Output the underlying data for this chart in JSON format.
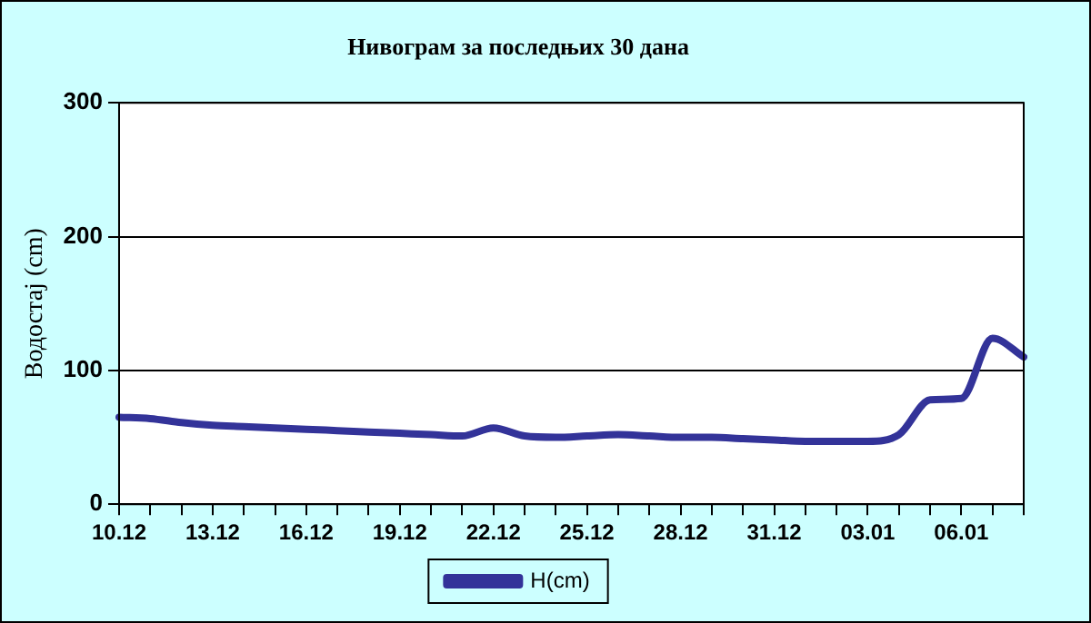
{
  "chart_data": {
    "type": "line",
    "title": "Нивограм за последњих 30 дана",
    "ylabel": "Водостај (cm)",
    "categories": [
      "10.12",
      null,
      null,
      "13.12",
      null,
      null,
      "16.12",
      null,
      null,
      "19.12",
      null,
      null,
      "22.12",
      null,
      null,
      "25.12",
      null,
      null,
      "28.12",
      null,
      null,
      "31.12",
      null,
      null,
      "03.01",
      null,
      null,
      "06.01",
      null,
      null
    ],
    "series": [
      {
        "name": "H(cm)",
        "color": "#333399",
        "values": [
          65,
          64,
          61,
          59,
          58,
          57,
          56,
          55,
          54,
          53,
          52,
          51,
          57,
          51,
          50,
          51,
          52,
          51,
          50,
          50,
          49,
          48,
          47,
          47,
          47,
          52,
          78,
          79,
          124,
          110
        ]
      }
    ],
    "ylim": [
      0,
      300
    ],
    "yticks": [
      0,
      100,
      200,
      300
    ],
    "grid": "y",
    "legend": "bottom",
    "marker": "none",
    "line_style": "solid"
  }
}
